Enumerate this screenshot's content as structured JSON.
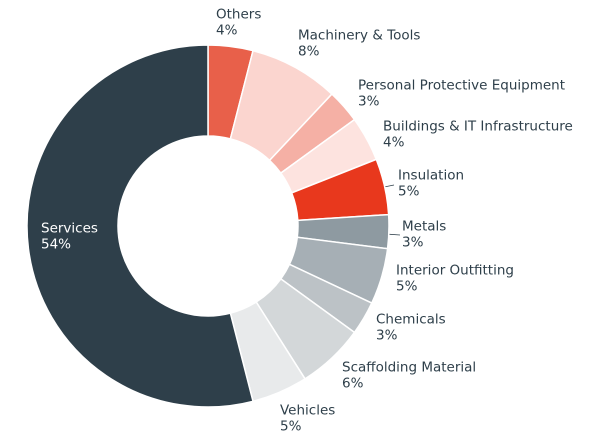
{
  "chart_data": {
    "type": "donut",
    "categories": [
      "Others",
      "Machinery & Tools",
      "Personal Protective Equipment",
      "Buildings & IT Infrastructure",
      "Insulation",
      "Metals",
      "Interior Outfitting",
      "Chemicals",
      "Scaffolding Material",
      "Vehicles",
      "Services"
    ],
    "values": [
      4,
      8,
      3,
      4,
      5,
      3,
      5,
      3,
      6,
      5,
      54
    ],
    "value_labels": [
      "4%",
      "8%",
      "3%",
      "4%",
      "5%",
      "3%",
      "5%",
      "3%",
      "6%",
      "5%",
      "54%"
    ],
    "colors": [
      "#e8604a",
      "#fbd5cf",
      "#f5b0a5",
      "#fde3df",
      "#e8381d",
      "#8e9aa1",
      "#a6afb5",
      "#bcc2c6",
      "#d3d7d9",
      "#e8eaeb",
      "#2e3f4a"
    ]
  }
}
